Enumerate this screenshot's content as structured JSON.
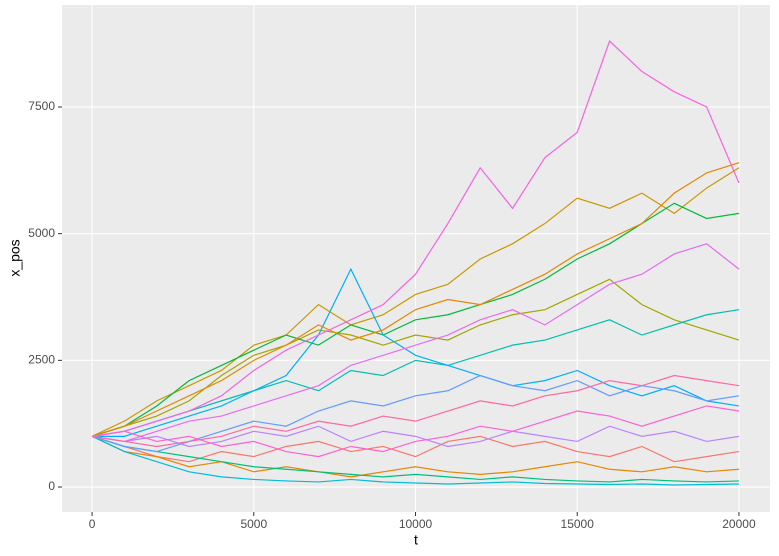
{
  "chart_data": {
    "type": "line",
    "x_label": "t",
    "y_label": "x_pos",
    "x": [
      0,
      1000,
      2000,
      3000,
      4000,
      5000,
      6000,
      7000,
      8000,
      9000,
      10000,
      11000,
      12000,
      13000,
      14000,
      15000,
      16000,
      17000,
      18000,
      19000,
      20000
    ],
    "xlim": [
      -930,
      20960
    ],
    "xticks": [
      0,
      5000,
      10000,
      15000,
      20000
    ],
    "ylim": [
      -493,
      9513
    ],
    "yticks": [
      0,
      2500,
      5000,
      7500
    ],
    "grid": true,
    "series": [
      {
        "color": "#F8766D",
        "values": [
          1000,
          800,
          600,
          500,
          700,
          600,
          800,
          900,
          700,
          800,
          600,
          900,
          1000,
          800,
          900,
          700,
          600,
          800,
          500,
          600,
          700
        ]
      },
      {
        "color": "#E58700",
        "values": [
          1000,
          700,
          600,
          400,
          500,
          300,
          400,
          300,
          200,
          300,
          400,
          300,
          250,
          300,
          400,
          500,
          350,
          300,
          400,
          300,
          350
        ]
      },
      {
        "color": "#C99800",
        "values": [
          1000,
          1300,
          1700,
          2000,
          2300,
          2800,
          3000,
          3600,
          3200,
          3400,
          3800,
          4000,
          4500,
          4800,
          5200,
          5700,
          5500,
          5800,
          5400,
          5900,
          6300
        ]
      },
      {
        "color": "#A3A500",
        "values": [
          1000,
          1200,
          1400,
          1700,
          2200,
          2600,
          2800,
          3100,
          3000,
          2800,
          3000,
          2900,
          3200,
          3400,
          3500,
          3800,
          4100,
          3600,
          3300,
          3100,
          2900
        ]
      },
      {
        "color": "#00BA38",
        "values": [
          1000,
          1200,
          1600,
          2100,
          2400,
          2700,
          3000,
          2800,
          3200,
          3000,
          3300,
          3400,
          3600,
          3800,
          4100,
          4500,
          4800,
          5200,
          5600,
          5300,
          5400
        ]
      },
      {
        "color": "#00BF7D",
        "values": [
          1000,
          800,
          700,
          600,
          500,
          400,
          350,
          300,
          250,
          200,
          250,
          200,
          150,
          200,
          150,
          120,
          100,
          150,
          120,
          100,
          120
        ]
      },
      {
        "color": "#00C0AF",
        "values": [
          1000,
          1100,
          1300,
          1500,
          1700,
          1900,
          2100,
          1900,
          2300,
          2200,
          2500,
          2400,
          2600,
          2800,
          2900,
          3100,
          3300,
          3000,
          3200,
          3400,
          3500
        ]
      },
      {
        "color": "#00BCD8",
        "values": [
          1000,
          700,
          500,
          300,
          200,
          150,
          120,
          100,
          150,
          100,
          80,
          60,
          80,
          100,
          70,
          60,
          50,
          60,
          40,
          50,
          60
        ]
      },
      {
        "color": "#00B0F6",
        "values": [
          1000,
          1000,
          1200,
          1400,
          1600,
          1900,
          2200,
          3000,
          4300,
          3000,
          2600,
          2400,
          2200,
          2000,
          2100,
          2300,
          2000,
          1800,
          2000,
          1700,
          1600
        ]
      },
      {
        "color": "#619CFF",
        "values": [
          1000,
          800,
          700,
          900,
          1100,
          1300,
          1200,
          1500,
          1700,
          1600,
          1800,
          1900,
          2200,
          2000,
          1900,
          2100,
          1800,
          2000,
          1900,
          1700,
          1800
        ]
      },
      {
        "color": "#B983FF",
        "values": [
          1000,
          900,
          1000,
          800,
          900,
          1100,
          1000,
          1200,
          900,
          1100,
          1000,
          800,
          900,
          1100,
          1000,
          900,
          1200,
          1000,
          1100,
          900,
          1000
        ]
      },
      {
        "color": "#E58700",
        "values": [
          1000,
          1200,
          1500,
          1800,
          2100,
          2500,
          2800,
          3200,
          2900,
          3100,
          3500,
          3700,
          3600,
          3900,
          4200,
          4600,
          4900,
          5200,
          5800,
          6200,
          6400
        ]
      },
      {
        "color": "#E76BF3",
        "values": [
          1000,
          900,
          1100,
          1300,
          1400,
          1600,
          1800,
          2000,
          2400,
          2600,
          2800,
          3000,
          3300,
          3500,
          3200,
          3600,
          4000,
          4200,
          4600,
          4800,
          4300
        ]
      },
      {
        "color": "#FD61D1",
        "values": [
          1000,
          1100,
          900,
          1000,
          800,
          900,
          700,
          600,
          800,
          700,
          900,
          1000,
          1200,
          1100,
          1300,
          1500,
          1400,
          1200,
          1400,
          1600,
          1500
        ]
      },
      {
        "color": "#FF67A4",
        "values": [
          1000,
          900,
          800,
          900,
          1000,
          1200,
          1100,
          1300,
          1200,
          1400,
          1300,
          1500,
          1700,
          1600,
          1800,
          1900,
          2100,
          2000,
          2200,
          2100,
          2000
        ]
      },
      {
        "color": "#F564E3",
        "values": [
          1000,
          1100,
          1300,
          1500,
          1800,
          2300,
          2700,
          3000,
          3300,
          3600,
          4200,
          5200,
          6300,
          5500,
          6500,
          7000,
          8800,
          8200,
          7800,
          7500,
          6000
        ]
      }
    ]
  }
}
